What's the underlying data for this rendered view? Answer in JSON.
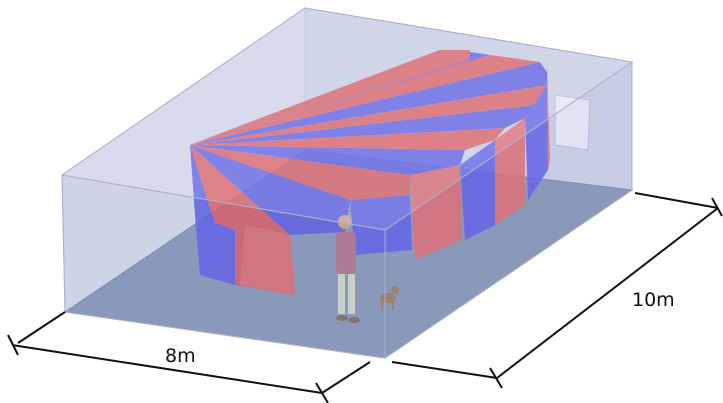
{
  "dimensions": {
    "width": "8m",
    "depth": "10m"
  }
}
